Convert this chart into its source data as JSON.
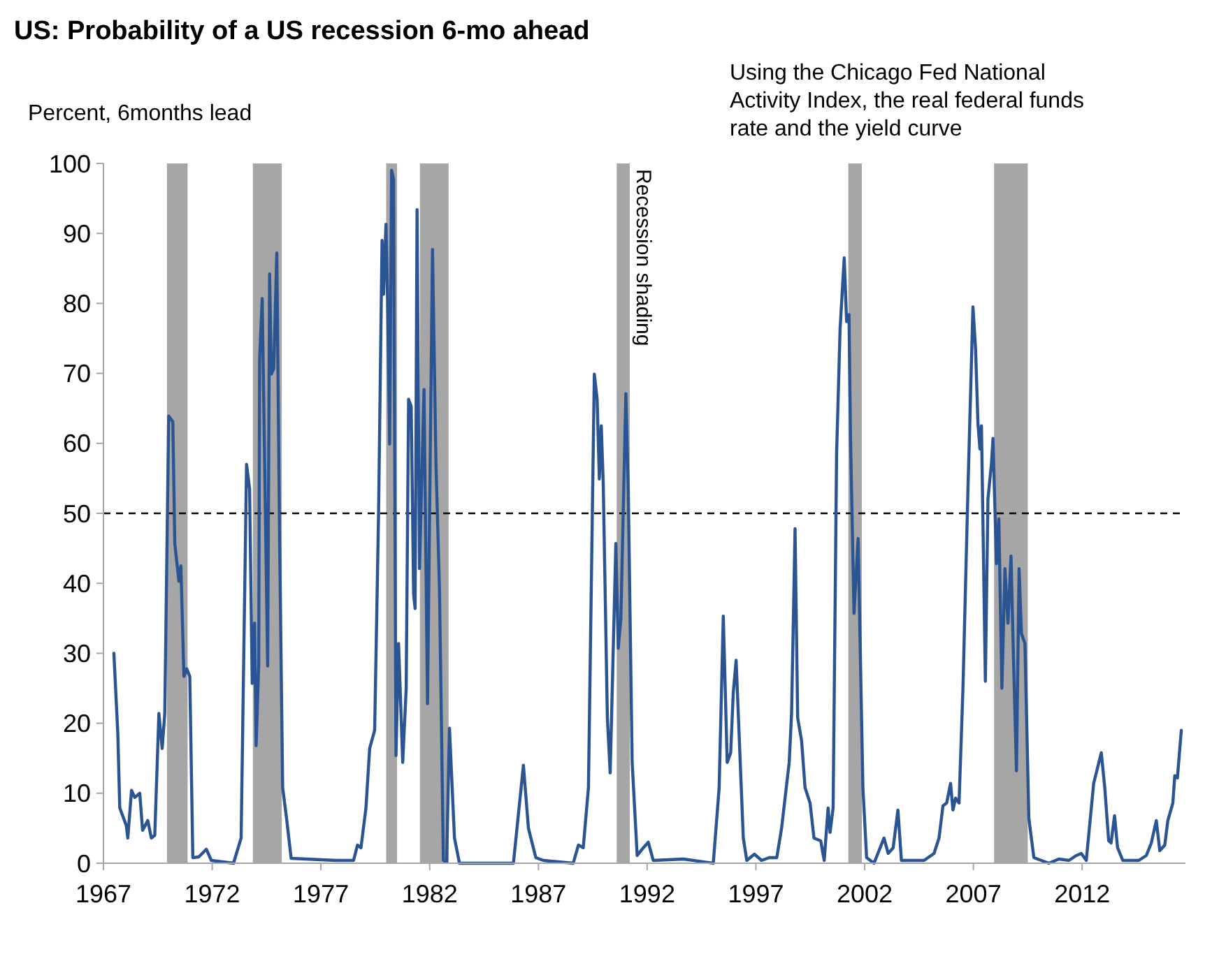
{
  "chart_data": {
    "type": "line",
    "title": "US: Probability of a US recession 6-mo ahead",
    "ylabel": "Percent, 6months lead",
    "annotations": [
      "Using the Chicago Fed National\nActivity Index, the real federal funds\nrate and the yield curve"
    ],
    "xlim": [
      1967,
      2016.75
    ],
    "xticks": [
      1967,
      1972,
      1977,
      1982,
      1987,
      1992,
      1997,
      2002,
      2007,
      2012
    ],
    "ylim": [
      0,
      100
    ],
    "yticks": [
      0,
      10,
      20,
      30,
      40,
      50,
      60,
      70,
      80,
      90,
      100
    ],
    "grid": false,
    "line_style": "solid",
    "ref_lines": [
      {
        "axis": "y",
        "value": 50,
        "color": "#000000",
        "line_style": "dashed"
      }
    ],
    "bands": [
      {
        "axis": "x",
        "from": 1969.92,
        "to": 1970.87,
        "color": "#a6a6a6"
      },
      {
        "axis": "x",
        "from": 1973.87,
        "to": 1975.2,
        "color": "#a6a6a6"
      },
      {
        "axis": "x",
        "from": 1980.0,
        "to": 1980.5,
        "color": "#a6a6a6"
      },
      {
        "axis": "x",
        "from": 1981.55,
        "to": 1982.87,
        "color": "#a6a6a6"
      },
      {
        "axis": "x",
        "from": 1990.6,
        "to": 1991.2,
        "color": "#a6a6a6",
        "label": "Recession shading"
      },
      {
        "axis": "x",
        "from": 2001.25,
        "to": 2001.87,
        "color": "#a6a6a6"
      },
      {
        "axis": "x",
        "from": 2007.95,
        "to": 2009.5,
        "color": "#a6a6a6"
      }
    ],
    "series": [
      {
        "color": "#2b5592",
        "x": [
          1967.48,
          1967.66,
          1967.75,
          1968.05,
          1968.12,
          1968.29,
          1968.44,
          1968.67,
          1968.8,
          1969.04,
          1969.2,
          1969.36,
          1969.55,
          1969.7,
          1969.82,
          1970.0,
          1970.19,
          1970.28,
          1970.47,
          1970.56,
          1970.7,
          1970.83,
          1970.97,
          1971.11,
          1971.38,
          1971.73,
          1971.96,
          1972.98,
          1973.33,
          1973.58,
          1973.72,
          1973.84,
          1973.95,
          1974.02,
          1974.14,
          1974.18,
          1974.3,
          1974.55,
          1974.64,
          1974.72,
          1974.83,
          1974.97,
          1975.1,
          1975.24,
          1975.42,
          1975.63,
          1977.7,
          1978.5,
          1978.68,
          1978.84,
          1979.07,
          1979.24,
          1979.47,
          1979.65,
          1979.81,
          1979.88,
          1979.99,
          1980.06,
          1980.16,
          1980.25,
          1980.34,
          1980.45,
          1980.57,
          1980.76,
          1980.92,
          1981.03,
          1981.15,
          1981.26,
          1981.33,
          1981.42,
          1981.53,
          1981.74,
          1981.9,
          1982.13,
          1982.29,
          1982.45,
          1982.63,
          1982.78,
          1982.91,
          1983.14,
          1983.37,
          1985.85,
          1986.31,
          1986.54,
          1986.88,
          1987.23,
          1988.6,
          1988.84,
          1989.06,
          1989.3,
          1989.57,
          1989.7,
          1989.8,
          1989.89,
          1989.98,
          1990.17,
          1990.3,
          1990.56,
          1990.67,
          1990.79,
          1991.02,
          1991.13,
          1991.31,
          1991.54,
          1991.82,
          1992.05,
          1992.28,
          1993.66,
          1995.04,
          1995.31,
          1995.5,
          1995.68,
          1995.84,
          1995.96,
          1996.09,
          1996.42,
          1996.58,
          1996.93,
          1997.26,
          1997.61,
          1997.96,
          1998.18,
          1998.53,
          1998.64,
          1998.8,
          1998.92,
          1999.1,
          1999.26,
          1999.49,
          1999.67,
          1999.98,
          2000.14,
          2000.32,
          2000.41,
          2000.55,
          2000.71,
          2000.87,
          2001.06,
          2001.17,
          2001.28,
          2001.35,
          2001.51,
          2001.7,
          2001.92,
          2002.09,
          2002.43,
          2002.71,
          2002.89,
          2003.08,
          2003.31,
          2003.53,
          2003.69,
          2004.73,
          2005.19,
          2005.42,
          2005.6,
          2005.77,
          2005.95,
          2006.06,
          2006.18,
          2006.34,
          2006.52,
          2006.75,
          2006.98,
          2007.1,
          2007.21,
          2007.3,
          2007.37,
          2007.44,
          2007.55,
          2007.67,
          2007.83,
          2007.9,
          2008.06,
          2008.17,
          2008.31,
          2008.45,
          2008.59,
          2008.73,
          2008.82,
          2008.98,
          2009.1,
          2009.21,
          2009.37,
          2009.55,
          2009.78,
          2010.47,
          2010.93,
          2011.39,
          2011.73,
          2011.96,
          2012.19,
          2012.53,
          2012.88,
          2013.04,
          2013.22,
          2013.33,
          2013.49,
          2013.63,
          2013.87,
          2014.6,
          2014.95,
          2015.18,
          2015.41,
          2015.57,
          2015.8,
          2015.94,
          2016.17,
          2016.26,
          2016.38,
          2016.56
        ],
        "values": [
          30,
          18.6,
          7.9,
          5.4,
          3.6,
          10.4,
          9.4,
          10,
          4.7,
          6.1,
          3.6,
          4,
          21.4,
          16.4,
          21.4,
          63.9,
          63.1,
          45.7,
          40.3,
          42.5,
          26.7,
          27.8,
          26.7,
          0.8,
          0.9,
          2,
          0.4,
          0,
          3.6,
          57,
          53.5,
          25.7,
          34.3,
          16.8,
          28.5,
          72,
          80.7,
          28.2,
          84.2,
          69.9,
          70.7,
          87.2,
          46.4,
          10.8,
          6.4,
          0.7,
          0.4,
          0.4,
          2.6,
          2.2,
          7.9,
          16.4,
          19,
          50,
          89,
          81.3,
          91.3,
          81.3,
          59.9,
          99,
          97.7,
          15.4,
          31.4,
          14.4,
          25,
          66.3,
          65.3,
          38.5,
          36.4,
          93.4,
          42.1,
          67.7,
          22.8,
          87.7,
          57,
          39.3,
          0.4,
          0.2,
          19.3,
          3.6,
          0,
          0,
          14,
          5,
          0.8,
          0.4,
          0,
          2.6,
          2.2,
          10.8,
          69.9,
          66.3,
          54.9,
          62.5,
          54.3,
          20.8,
          12.9,
          45.7,
          30.7,
          34.9,
          67.1,
          53.5,
          14.4,
          1.1,
          2.2,
          3,
          0.4,
          0.6,
          0,
          10.8,
          35.3,
          14.4,
          15.8,
          24.4,
          29,
          3.6,
          0.4,
          1.3,
          0.4,
          0.8,
          0.8,
          5,
          14.4,
          21.4,
          47.8,
          20.8,
          17.5,
          10.8,
          8.6,
          3.6,
          3.2,
          0.4,
          7.9,
          4.4,
          7.9,
          58.5,
          76.3,
          86.5,
          77.4,
          78.4,
          60.7,
          35.7,
          46.4,
          10.8,
          0.8,
          0,
          2.2,
          3.6,
          1.4,
          2.2,
          7.6,
          0.4,
          0.4,
          1.4,
          3.6,
          8.2,
          8.6,
          11.4,
          7.6,
          9.3,
          8.6,
          25,
          53.5,
          79.5,
          73.5,
          62.8,
          59.2,
          62.5,
          48.5,
          26,
          52.1,
          57.1,
          60.7,
          42.8,
          49.2,
          25,
          42.1,
          34.3,
          43.9,
          32.1,
          13.2,
          42.1,
          32.8,
          31.4,
          6.4,
          0.8,
          0,
          0.6,
          0.4,
          1.1,
          1.4,
          0.4,
          11.4,
          15.8,
          10.8,
          3.2,
          2.9,
          6.8,
          2.2,
          0.4,
          0.4,
          1.1,
          2.9,
          6.1,
          1.8,
          2.6,
          6.1,
          8.6,
          12.5,
          12.2,
          19
        ]
      }
    ]
  }
}
